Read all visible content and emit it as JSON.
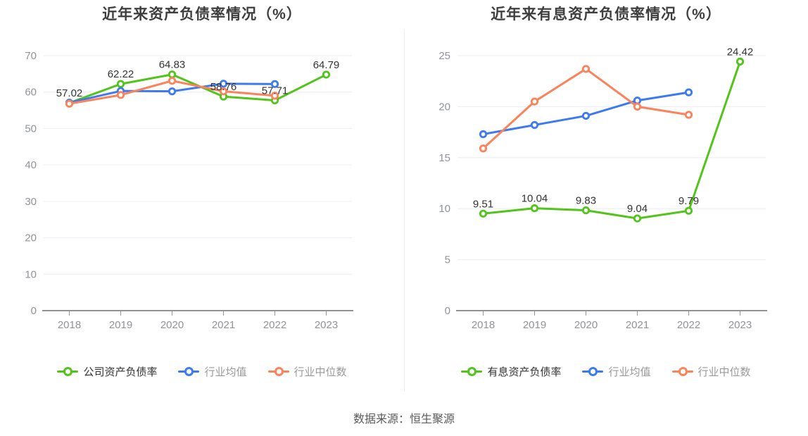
{
  "page": {
    "source_note": "数据来源：恒生聚源",
    "background": "#ffffff"
  },
  "colors": {
    "company_green": "#52c41a",
    "industry_avg_blue": "#3d7af2",
    "industry_median_orange": "#fa835c",
    "grid": "#e9edf4",
    "axis": "#8f9296",
    "tick_label": "#909399",
    "value_label": "#333333",
    "title": "#3e3e3e",
    "legend_muted": "#999999",
    "legend_primary": "#333333",
    "divider": "#ececec",
    "source": "#595959"
  },
  "chart_data": [
    {
      "type": "line",
      "title": "近年来资产负债率情况（%）",
      "categories": [
        "2018",
        "2019",
        "2020",
        "2021",
        "2022",
        "2023"
      ],
      "ylim": [
        0,
        70
      ],
      "ytick_step": 10,
      "yticks": [
        "0",
        "10",
        "20",
        "30",
        "40",
        "50",
        "60",
        "70"
      ],
      "grid": true,
      "legend_position": "bottom",
      "series": [
        {
          "name": "公司资产负债率",
          "color": "#52c41a",
          "values": [
            57.02,
            62.22,
            64.83,
            58.76,
            57.71,
            64.79
          ],
          "data_labels": [
            "57.02",
            "62.22",
            "64.83",
            "58.76",
            "57.71",
            "64.79"
          ]
        },
        {
          "name": "行业均值",
          "color": "#3d7af2",
          "values": [
            57.1,
            60.3,
            60.2,
            62.3,
            62.2
          ]
        },
        {
          "name": "行业中位数",
          "color": "#fa835c",
          "values": [
            56.8,
            59.2,
            63.1,
            60.2,
            59.0
          ]
        }
      ]
    },
    {
      "type": "line",
      "title": "近年来有息资产负债率情况（%）",
      "categories": [
        "2018",
        "2019",
        "2020",
        "2021",
        "2022",
        "2023"
      ],
      "ylim": [
        0,
        25
      ],
      "ytick_step": 5,
      "yticks": [
        "0",
        "5",
        "10",
        "15",
        "20",
        "25"
      ],
      "grid": true,
      "legend_position": "bottom",
      "series": [
        {
          "name": "有息资产负债率",
          "color": "#52c41a",
          "values": [
            9.51,
            10.04,
            9.83,
            9.04,
            9.79,
            24.42
          ],
          "data_labels": [
            "9.51",
            "10.04",
            "9.83",
            "9.04",
            "9.79",
            "24.42"
          ]
        },
        {
          "name": "行业均值",
          "color": "#3d7af2",
          "values": [
            17.3,
            18.2,
            19.1,
            20.6,
            21.4
          ]
        },
        {
          "name": "行业中位数",
          "color": "#fa835c",
          "values": [
            15.9,
            20.5,
            23.7,
            20.0,
            19.2
          ]
        }
      ]
    }
  ]
}
